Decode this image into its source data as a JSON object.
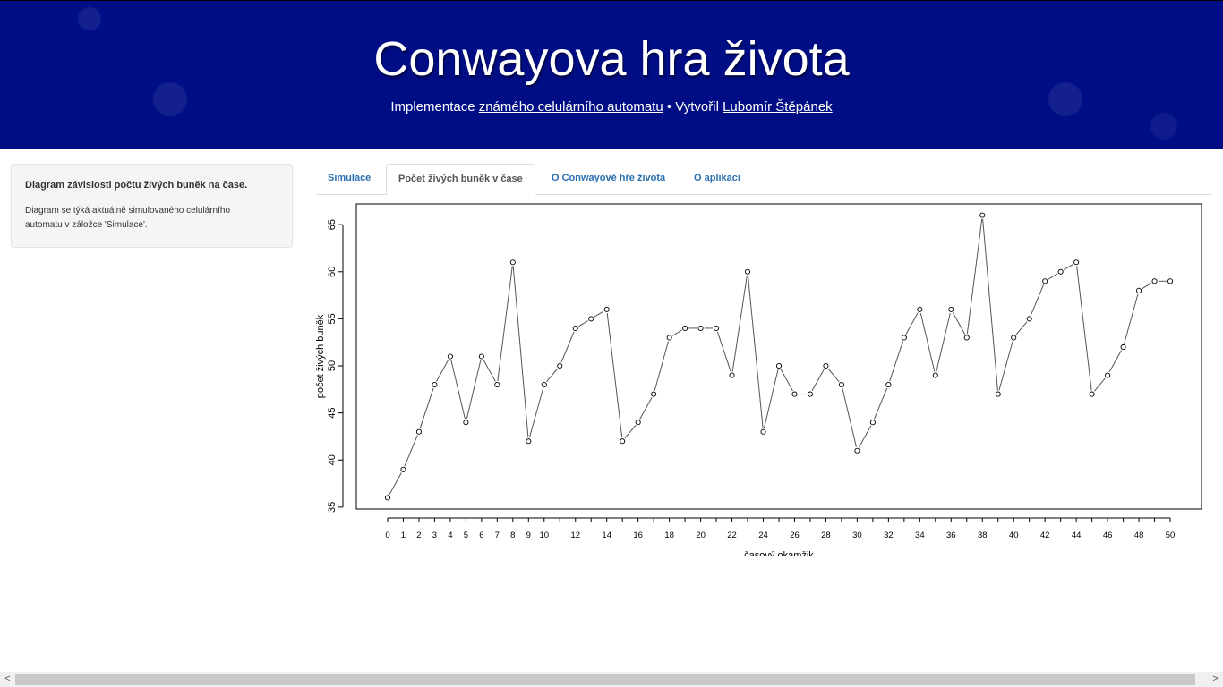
{
  "header": {
    "title": "Conwayova hra života",
    "subtitle_prefix": "Implementace",
    "subtitle_link1": "známého celulárního automatu",
    "subtitle_sep": "• Vytvořil",
    "subtitle_link2": "Lubomír Štěpánek"
  },
  "sidebar": {
    "title": "Diagram závislosti počtu živých buněk na čase.",
    "text": "Diagram se týká aktuálně simulovaného celulárního automatu v záložce 'Simulace'."
  },
  "tabs": [
    {
      "label": "Simulace",
      "active": false
    },
    {
      "label": "Počet živých buněk v čase",
      "active": true
    },
    {
      "label": "O Conwayově hře života",
      "active": false
    },
    {
      "label": "O aplikaci",
      "active": false
    }
  ],
  "scrollbar": {
    "left_arrow": "<",
    "right_arrow": ">"
  },
  "chart_data": {
    "type": "line",
    "xlabel": "časový okamžik",
    "ylabel": "počet živých buněk",
    "x": [
      0,
      1,
      2,
      3,
      4,
      5,
      6,
      7,
      8,
      9,
      10,
      11,
      12,
      13,
      14,
      15,
      16,
      17,
      18,
      19,
      20,
      21,
      22,
      23,
      24,
      25,
      26,
      27,
      28,
      29,
      30,
      31,
      32,
      33,
      34,
      35,
      36,
      37,
      38,
      39,
      40,
      41,
      42,
      43,
      44,
      45,
      46,
      47,
      48,
      49,
      50
    ],
    "values": [
      36,
      39,
      43,
      48,
      51,
      44,
      51,
      48,
      61,
      42,
      48,
      50,
      54,
      55,
      56,
      42,
      44,
      47,
      53,
      54,
      54,
      54,
      49,
      60,
      43,
      50,
      47,
      47,
      50,
      48,
      41,
      44,
      48,
      53,
      56,
      49,
      56,
      53,
      66,
      47,
      53,
      55,
      59,
      60,
      61,
      47,
      49,
      52,
      58,
      59,
      59
    ],
    "xticks": [
      0,
      1,
      2,
      3,
      4,
      5,
      6,
      7,
      8,
      9,
      10,
      12,
      14,
      16,
      18,
      20,
      22,
      24,
      26,
      28,
      30,
      32,
      34,
      36,
      38,
      40,
      42,
      44,
      46,
      48,
      50
    ],
    "yticks": [
      35,
      40,
      45,
      50,
      55,
      60,
      65
    ],
    "xlim": [
      -2,
      52
    ],
    "ylim": [
      34.8,
      67.2
    ],
    "markers": "open-circle",
    "line_color": "#555555"
  }
}
